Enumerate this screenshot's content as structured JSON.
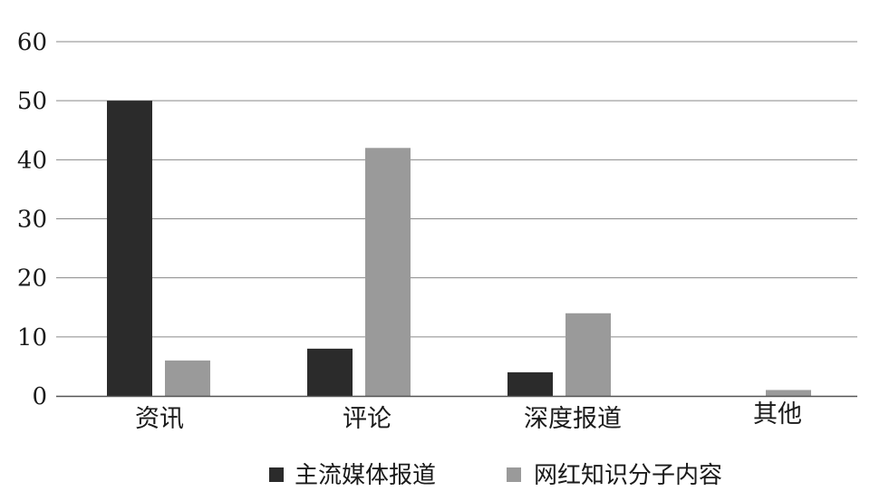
{
  "chart_data": {
    "type": "bar",
    "categories": [
      "资讯",
      "评论",
      "深度报道",
      "其他"
    ],
    "series": [
      {
        "name": "主流媒体报道",
        "color": "#2b2b2b",
        "values": [
          50,
          8,
          4,
          0
        ]
      },
      {
        "name": "网红知识分子内容",
        "color": "#9a9a9a",
        "values": [
          6,
          42,
          14,
          1
        ]
      }
    ],
    "y_ticks": [
      0,
      10,
      20,
      30,
      40,
      50,
      60
    ],
    "ylim": [
      0,
      60
    ],
    "grid": true,
    "legend_position": "bottom-center",
    "title": "",
    "xlabel": "",
    "ylabel": ""
  }
}
